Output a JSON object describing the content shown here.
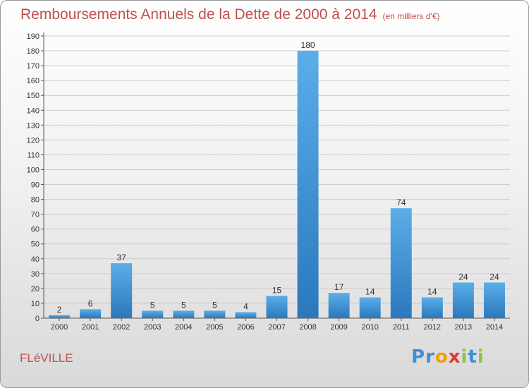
{
  "chart_data": {
    "type": "bar",
    "title": "Remboursements Annuels de la Dette de 2000 à 2014",
    "subtitle": "(en milliers d'€)",
    "categories": [
      "2000",
      "2001",
      "2002",
      "2003",
      "2004",
      "2005",
      "2006",
      "2007",
      "2008",
      "2009",
      "2010",
      "2011",
      "2012",
      "2013",
      "2014"
    ],
    "values": [
      2,
      6,
      37,
      5,
      5,
      5,
      4,
      15,
      180,
      17,
      14,
      74,
      14,
      24,
      24
    ],
    "ylim": [
      0,
      190
    ],
    "ytick_step": 10,
    "grid": true,
    "bar_color": "#3a8fd6"
  },
  "footer": {
    "commune": "FLéVILLE",
    "logo_letters": [
      {
        "ch": "P",
        "color": "#3f8fd2"
      },
      {
        "ch": "r",
        "color": "#3f8fd2"
      },
      {
        "ch": "o",
        "color": "#f0a000"
      },
      {
        "ch": "x",
        "color": "#e03a2f"
      },
      {
        "ch": "i",
        "color": "#8cc63f"
      },
      {
        "ch": "t",
        "color": "#3f8fd2"
      },
      {
        "ch": "i",
        "color": "#8cc63f"
      }
    ]
  }
}
